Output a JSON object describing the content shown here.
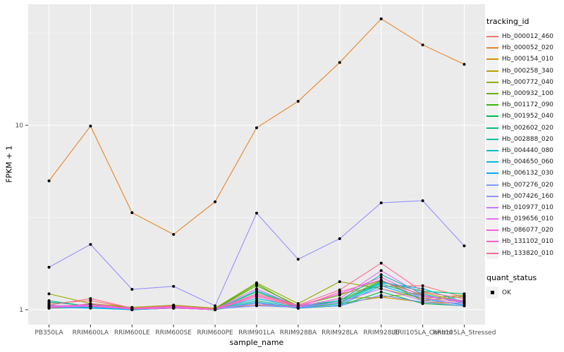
{
  "figure": {
    "bg": "#FFFFFF",
    "panel_bg": "#EBEBEB",
    "grid_color": "#FFFFFF",
    "tick_color": "#333333",
    "axis_text_color": "#4D4D4D",
    "point_color": "#000000"
  },
  "axes": {
    "x_title": "sample_name",
    "y_title": "FPKM + 1"
  },
  "legend": {
    "tracking_title": "tracking_id",
    "quant_title": "quant_status",
    "quant_ok_label": "OK"
  },
  "chart_data": {
    "type": "line",
    "title": "",
    "xlabel": "sample_name",
    "ylabel": "FPKM + 1",
    "y_scale": "log10",
    "ylim": [
      0.83,
      45
    ],
    "grid": true,
    "legend_position": "right",
    "y_major_ticks": [
      {
        "label": "1",
        "value": 1
      },
      {
        "label": "10",
        "value": 10
      }
    ],
    "y_minor_ticks": [
      3.1623,
      31.623
    ],
    "categories": [
      "PB350LA",
      "RRIM600LA",
      "RRIM600LE",
      "RRIM600SE",
      "RRIM600PE",
      "RRIM901LA",
      "RRIM928BA",
      "RRIM928LA",
      "RRIM928LE",
      "RRII105LA_Control",
      "RRII105LA_Stressed"
    ],
    "series": [
      {
        "name": "Hb_000012_460",
        "color": "#F8766D",
        "values": [
          1.08,
          1.12,
          1.02,
          1.05,
          1.01,
          1.06,
          1.05,
          1.22,
          1.34,
          1.35,
          1.17
        ]
      },
      {
        "name": "Hb_000052_020",
        "color": "#E88526",
        "values": [
          5.0,
          9.9,
          3.36,
          2.56,
          3.85,
          9.7,
          13.5,
          21.9,
          37.8,
          27.3,
          21.4
        ]
      },
      {
        "name": "Hb_000154_010",
        "color": "#D39200",
        "values": [
          1.05,
          1.04,
          1.01,
          1.03,
          1.01,
          1.2,
          1.04,
          1.15,
          1.17,
          1.1,
          1.08
        ]
      },
      {
        "name": "Hb_000258_340",
        "color": "#B79F00",
        "values": [
          1.03,
          1.06,
          1.0,
          1.02,
          1.0,
          1.1,
          1.02,
          1.08,
          1.17,
          1.24,
          1.1
        ]
      },
      {
        "name": "Hb_000772_040",
        "color": "#93AA00",
        "values": [
          1.22,
          1.08,
          1.03,
          1.06,
          1.02,
          1.4,
          1.08,
          1.42,
          1.3,
          1.15,
          1.2
        ]
      },
      {
        "name": "Hb_000932_100",
        "color": "#6BB100",
        "values": [
          1.05,
          1.05,
          1.01,
          1.04,
          1.01,
          1.35,
          1.05,
          1.2,
          1.45,
          1.12,
          1.18
        ]
      },
      {
        "name": "Hb_001172_090",
        "color": "#39B600",
        "values": [
          1.04,
          1.07,
          1.02,
          1.03,
          1.01,
          1.38,
          1.03,
          1.12,
          1.44,
          1.2,
          1.1
        ]
      },
      {
        "name": "Hb_001952_040",
        "color": "#00BB4E",
        "values": [
          1.02,
          1.03,
          1.0,
          1.02,
          1.0,
          1.08,
          1.02,
          1.05,
          1.25,
          1.08,
          1.05
        ]
      },
      {
        "name": "Hb_002602_020",
        "color": "#00C078",
        "values": [
          1.1,
          1.05,
          1.01,
          1.03,
          1.01,
          1.25,
          1.04,
          1.1,
          1.42,
          1.26,
          1.22
        ]
      },
      {
        "name": "Hb_002888_020",
        "color": "#00C19F",
        "values": [
          1.12,
          1.04,
          1.02,
          1.04,
          1.01,
          1.12,
          1.03,
          1.08,
          1.38,
          1.18,
          1.12
        ]
      },
      {
        "name": "Hb_004440_080",
        "color": "#00BFC4",
        "values": [
          1.06,
          1.03,
          1.01,
          1.02,
          1.0,
          1.27,
          1.05,
          1.12,
          1.55,
          1.22,
          1.08
        ]
      },
      {
        "name": "Hb_004650_060",
        "color": "#00B9E3",
        "values": [
          1.04,
          1.05,
          1.01,
          1.03,
          1.01,
          1.15,
          1.04,
          1.1,
          1.4,
          1.3,
          1.1
        ]
      },
      {
        "name": "Hb_006132_030",
        "color": "#00ABFD",
        "values": [
          1.03,
          1.02,
          1.0,
          1.02,
          1.0,
          1.1,
          1.02,
          1.06,
          1.35,
          1.15,
          1.06
        ]
      },
      {
        "name": "Hb_007276_020",
        "color": "#7997FF",
        "values": [
          1.05,
          1.04,
          1.01,
          1.03,
          1.01,
          1.05,
          1.03,
          1.05,
          1.2,
          1.1,
          1.05
        ]
      },
      {
        "name": "Hb_007426_160",
        "color": "#9590FF",
        "values": [
          1.7,
          2.26,
          1.29,
          1.34,
          1.05,
          3.34,
          1.88,
          2.43,
          3.8,
          3.9,
          2.22
        ]
      },
      {
        "name": "Hb_010977_010",
        "color": "#C77CFF",
        "values": [
          1.03,
          1.04,
          1.01,
          1.02,
          1.01,
          1.08,
          1.03,
          1.1,
          1.3,
          1.12,
          1.08
        ]
      },
      {
        "name": "Hb_019656_010",
        "color": "#E76BF3",
        "values": [
          1.05,
          1.06,
          1.02,
          1.03,
          1.01,
          1.3,
          1.04,
          1.15,
          1.63,
          1.2,
          1.1
        ]
      },
      {
        "name": "Hb_086077_020",
        "color": "#FA62DB",
        "values": [
          1.04,
          1.05,
          1.01,
          1.04,
          1.01,
          1.2,
          1.05,
          1.22,
          1.5,
          1.18,
          1.12
        ]
      },
      {
        "name": "Hb_131102_010",
        "color": "#FF61C7",
        "values": [
          1.02,
          1.08,
          1.01,
          1.02,
          1.0,
          1.18,
          1.03,
          1.25,
          1.45,
          1.15,
          1.1
        ]
      },
      {
        "name": "Hb_133820_010",
        "color": "#FF6B94",
        "values": [
          1.06,
          1.15,
          1.02,
          1.05,
          1.01,
          1.22,
          1.06,
          1.28,
          1.79,
          1.25,
          1.15
        ]
      }
    ]
  }
}
